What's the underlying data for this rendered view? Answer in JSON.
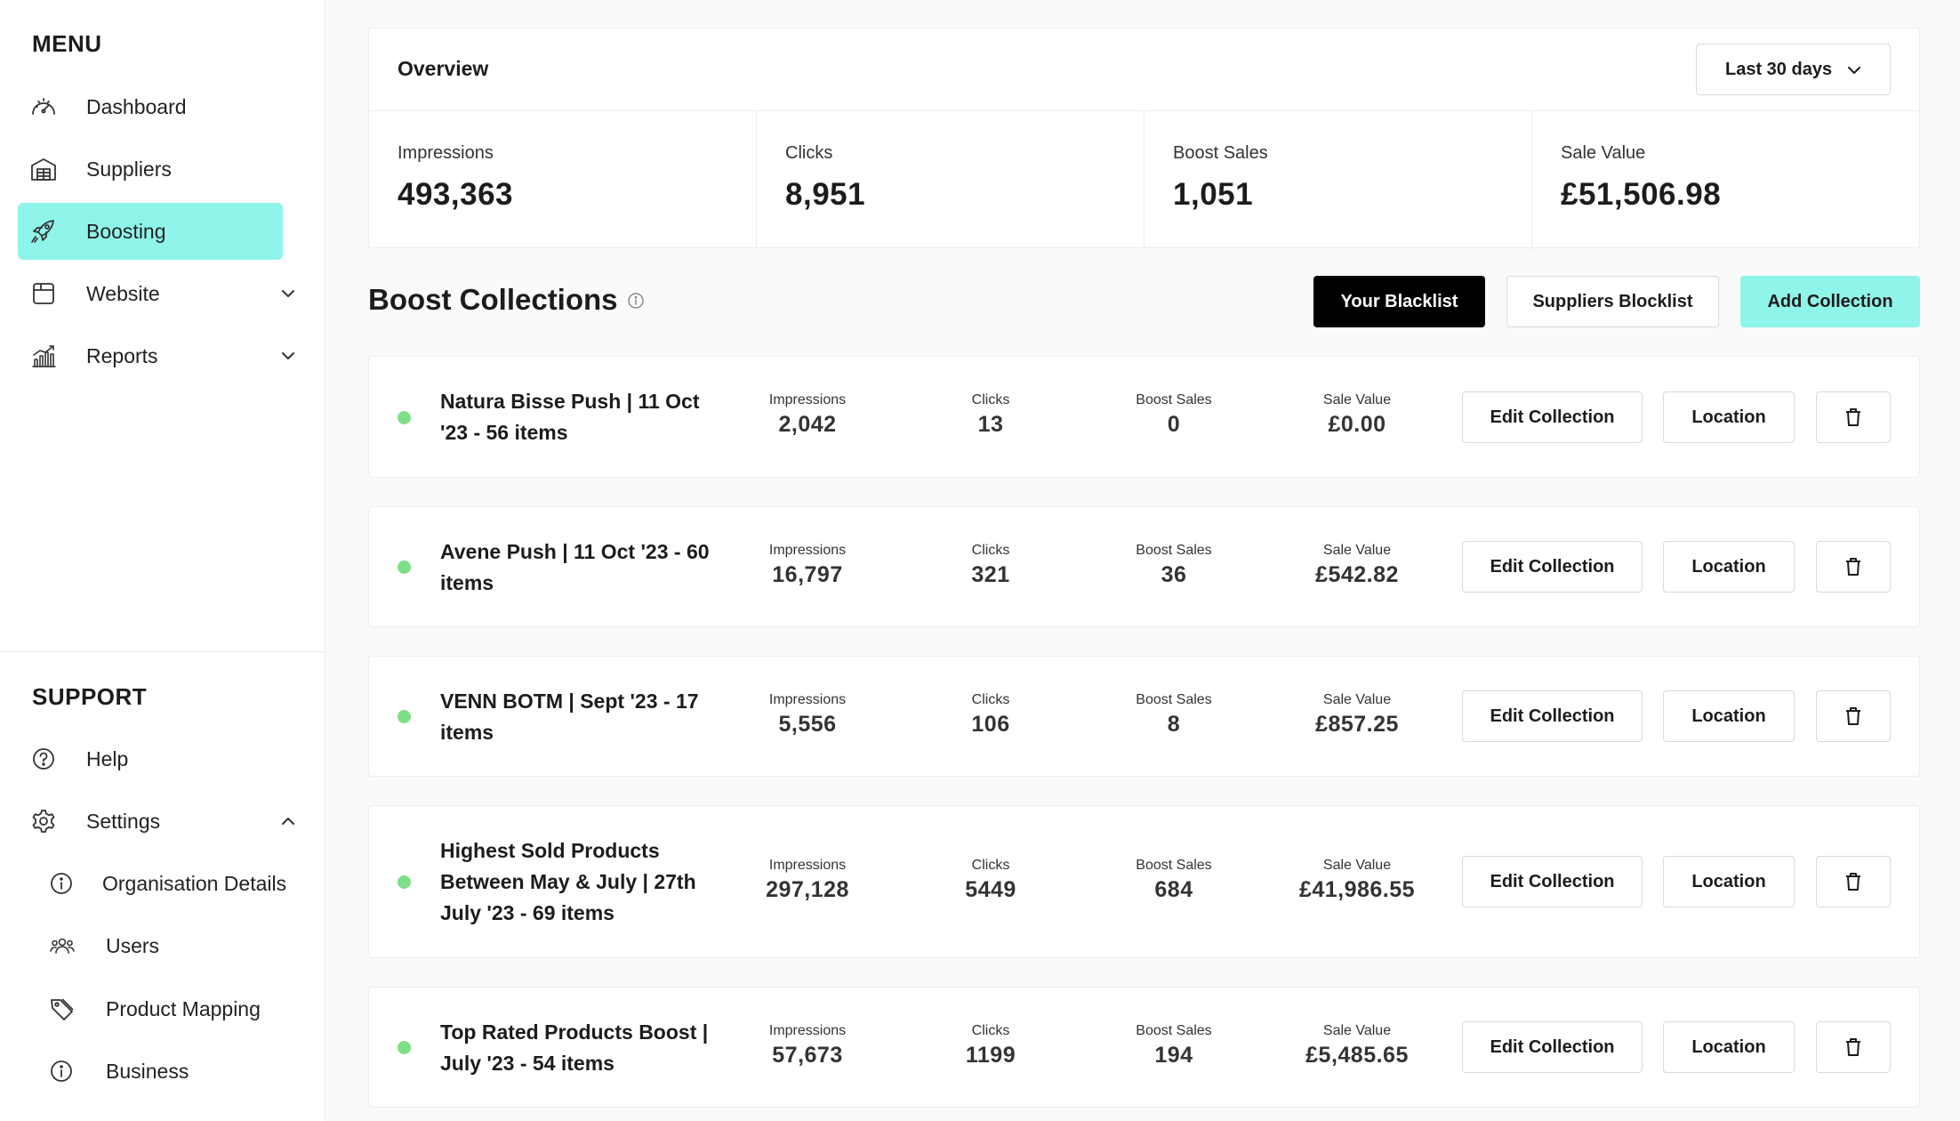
{
  "sidebar": {
    "menu_title": "MENU",
    "menu": [
      {
        "label": "Dashboard",
        "icon": "gauge-icon"
      },
      {
        "label": "Suppliers",
        "icon": "warehouse-icon"
      },
      {
        "label": "Boosting",
        "icon": "rocket-icon",
        "active": true
      },
      {
        "label": "Website",
        "icon": "browser-icon",
        "expandable": true
      },
      {
        "label": "Reports",
        "icon": "bar-chart-icon",
        "expandable": true
      }
    ],
    "support_title": "SUPPORT",
    "support": [
      {
        "label": "Help",
        "icon": "question-circle-icon"
      },
      {
        "label": "Settings",
        "icon": "gear-icon",
        "expanded": true
      }
    ],
    "settings_sub": [
      {
        "label": "Organisation Details",
        "icon": "info-circle-icon"
      },
      {
        "label": "Users",
        "icon": "users-icon"
      },
      {
        "label": "Product Mapping",
        "icon": "tag-icon"
      },
      {
        "label": "Business",
        "icon": "info-circle-icon"
      }
    ]
  },
  "overview": {
    "title": "Overview",
    "period": "Last 30 days",
    "stats": [
      {
        "label": "Impressions",
        "value": "493,363"
      },
      {
        "label": "Clicks",
        "value": "8,951"
      },
      {
        "label": "Boost Sales",
        "value": "1,051"
      },
      {
        "label": "Sale Value",
        "value": "£51,506.98"
      }
    ]
  },
  "collections": {
    "title": "Boost Collections",
    "your_blacklist": "Your Blacklist",
    "suppliers_blacklist": "Suppliers Blocklist",
    "add_collection": "Add Collection",
    "metric_labels": {
      "impressions": "Impressions",
      "clicks": "Clicks",
      "boost_sales": "Boost Sales",
      "sale_value": "Sale Value"
    },
    "edit_label": "Edit Collection",
    "location_label": "Location",
    "status_color": "#7ddf86",
    "items": [
      {
        "name": "Natura Bisse Push | 11 Oct '23 - 56 items",
        "impressions": "2,042",
        "clicks": "13",
        "boost_sales": "0",
        "sale_value": "£0.00"
      },
      {
        "name": "Avene Push | 11 Oct '23 - 60 items",
        "impressions": "16,797",
        "clicks": "321",
        "boost_sales": "36",
        "sale_value": "£542.82"
      },
      {
        "name": "VENN BOTM | Sept '23 - 17 items",
        "impressions": "5,556",
        "clicks": "106",
        "boost_sales": "8",
        "sale_value": "£857.25"
      },
      {
        "name": "Highest Sold Products Between May & July | 27th July '23 - 69 items",
        "impressions": "297,128",
        "clicks": "5449",
        "boost_sales": "684",
        "sale_value": "£41,986.55"
      },
      {
        "name": "Top Rated Products Boost | July '23 - 54 items",
        "impressions": "57,673",
        "clicks": "1199",
        "boost_sales": "194",
        "sale_value": "£5,485.65"
      }
    ]
  }
}
